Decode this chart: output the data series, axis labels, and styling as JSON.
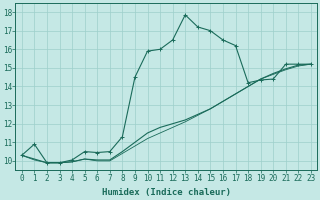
{
  "xlabel": "Humidex (Indice chaleur)",
  "xlim": [
    -0.5,
    23.5
  ],
  "ylim": [
    9.5,
    18.5
  ],
  "xticks": [
    0,
    1,
    2,
    3,
    4,
    5,
    6,
    7,
    8,
    9,
    10,
    11,
    12,
    13,
    14,
    15,
    16,
    17,
    18,
    19,
    20,
    21,
    22,
    23
  ],
  "yticks": [
    10,
    11,
    12,
    13,
    14,
    15,
    16,
    17,
    18
  ],
  "bg_color": "#c5e8e5",
  "line_color": "#1a6b5a",
  "grid_color": "#9ecfcb",
  "series1_y": [
    10.3,
    10.9,
    9.9,
    9.9,
    10.05,
    10.5,
    10.45,
    10.5,
    11.3,
    14.5,
    15.9,
    16.0,
    16.5,
    17.85,
    17.2,
    17.0,
    16.5,
    16.2,
    14.2,
    14.35,
    14.4,
    15.2,
    15.2,
    15.2
  ],
  "series2_y": [
    10.3,
    10.1,
    9.9,
    9.9,
    9.95,
    10.1,
    10.05,
    10.05,
    10.5,
    11.0,
    11.5,
    11.8,
    12.0,
    12.2,
    12.5,
    12.8,
    13.2,
    13.6,
    14.0,
    14.4,
    14.7,
    14.95,
    15.15,
    15.2
  ],
  "series3_y": [
    10.3,
    10.05,
    9.9,
    9.9,
    9.95,
    10.1,
    10.0,
    10.0,
    10.4,
    10.8,
    11.2,
    11.5,
    11.8,
    12.1,
    12.45,
    12.8,
    13.2,
    13.6,
    14.0,
    14.4,
    14.65,
    14.9,
    15.1,
    15.2
  ],
  "tick_fontsize": 5.5,
  "xlabel_fontsize": 6.5
}
